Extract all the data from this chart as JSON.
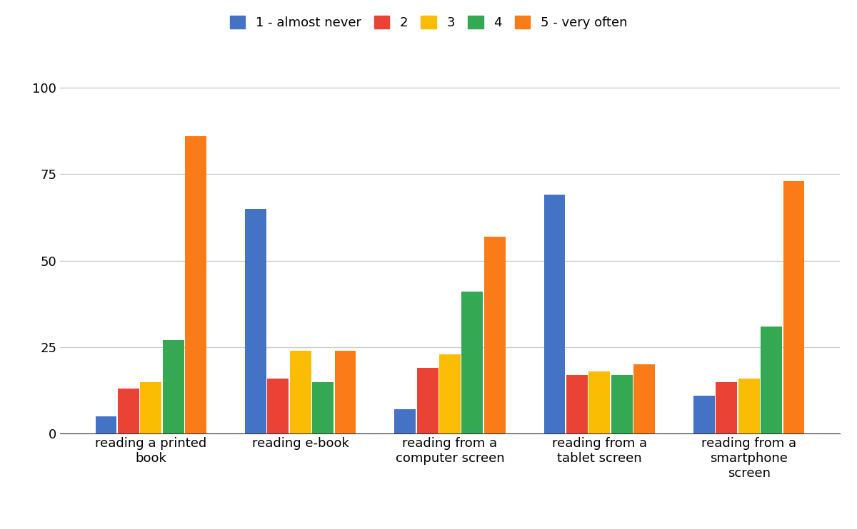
{
  "categories": [
    "reading a printed\nbook",
    "reading e-book",
    "reading from a\ncomputer screen",
    "reading from a\ntablet screen",
    "reading from a\nsmartphone\nscreen"
  ],
  "series": {
    "1 - almost never": [
      5,
      65,
      7,
      69,
      11
    ],
    "2": [
      13,
      16,
      19,
      17,
      15
    ],
    "3": [
      15,
      24,
      23,
      18,
      16
    ],
    "4": [
      27,
      15,
      41,
      17,
      31
    ],
    "5 - very often": [
      86,
      24,
      57,
      20,
      73
    ]
  },
  "colors": {
    "1 - almost never": "#4472C4",
    "2": "#EA4335",
    "3": "#FBBC04",
    "4": "#34A853",
    "5 - very often": "#FA7B17"
  },
  "ylim": [
    0,
    110
  ],
  "yticks": [
    0,
    25,
    50,
    75,
    100
  ],
  "grid_color": "#cccccc",
  "background_color": "#ffffff",
  "legend_fontsize": 13,
  "tick_fontsize": 13,
  "bar_width": 0.15
}
